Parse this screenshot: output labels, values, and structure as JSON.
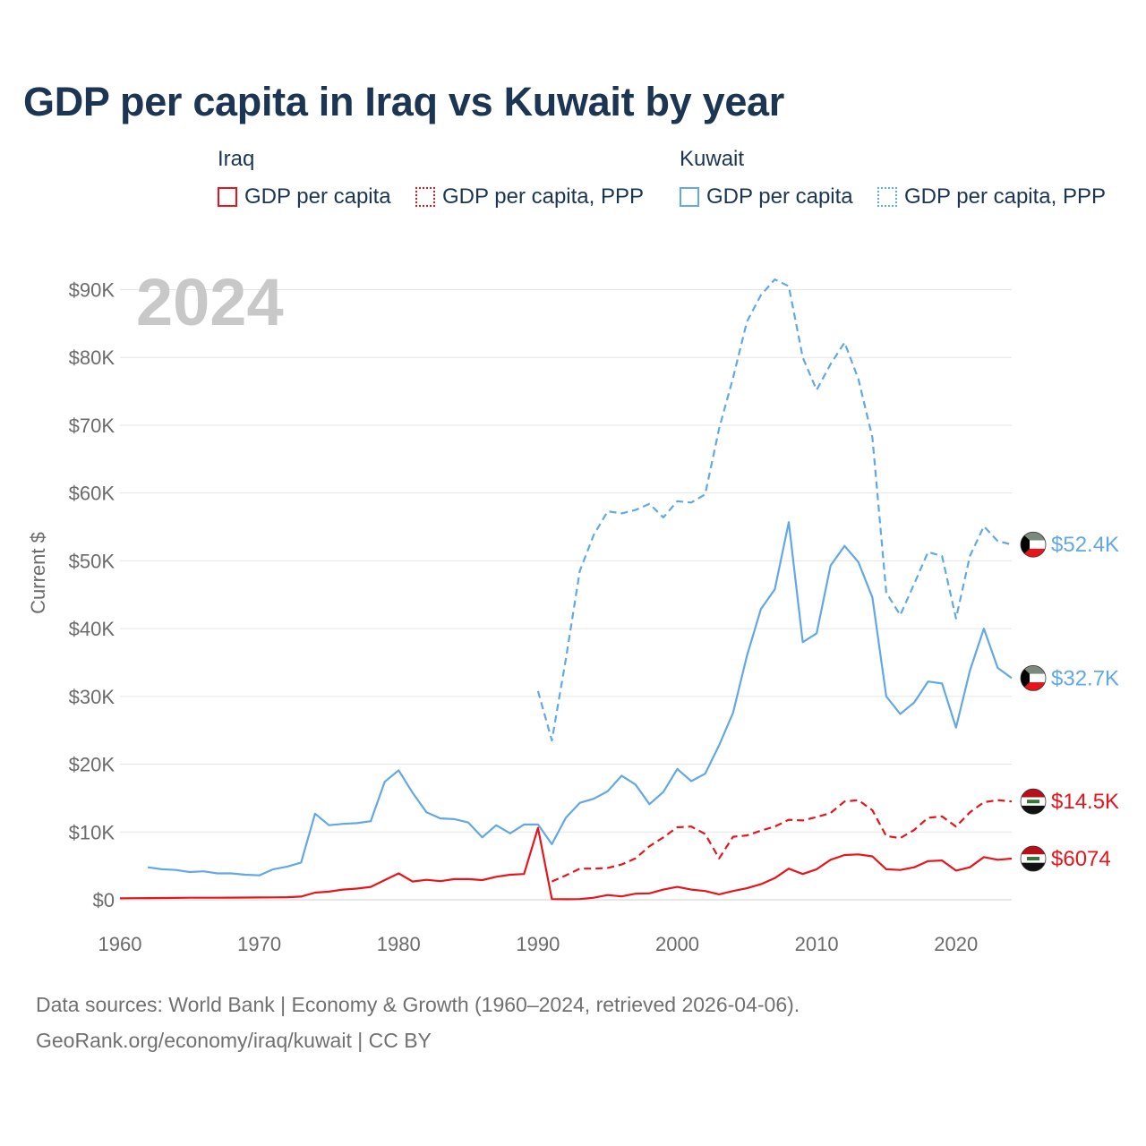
{
  "title": "GDP per capita in Iraq vs Kuwait by year",
  "legend": {
    "groups": [
      {
        "name": "Iraq",
        "items": [
          {
            "label": "GDP per capita",
            "style": "solid",
            "color": "#e8141c"
          },
          {
            "label": "GDP per capita, PPP",
            "style": "dotted",
            "color": "#e8141c"
          }
        ]
      },
      {
        "name": "Kuwait",
        "items": [
          {
            "label": "GDP per capita",
            "style": "solid",
            "color": "#62a8e5"
          },
          {
            "label": "GDP per capita, PPP",
            "style": "dotted",
            "color": "#62a8e5"
          }
        ]
      }
    ]
  },
  "year_watermark": "2024",
  "footer": {
    "line1": "Data sources: World Bank | Economy & Growth (1960–2024, retrieved 2026-04-06).",
    "line2": "GeoRank.org/economy/iraq/kuwait | CC BY"
  },
  "chart_data": {
    "type": "line",
    "title": "GDP per capita in Iraq vs Kuwait by year",
    "xlabel": "",
    "ylabel": "Current $",
    "xlim": [
      1960,
      2024
    ],
    "ylim": [
      0,
      90000
    ],
    "xticks": [
      1960,
      1970,
      1980,
      1990,
      2000,
      2010,
      2020
    ],
    "xtick_labels": [
      "1960",
      "1970",
      "1980",
      "1990",
      "2000",
      "2010",
      "2020"
    ],
    "yticks": [
      0,
      10000,
      20000,
      30000,
      40000,
      50000,
      60000,
      70000,
      80000,
      90000
    ],
    "ytick_labels": [
      "$0",
      "$10K",
      "$20K",
      "$30K",
      "$40K",
      "$50K",
      "$60K",
      "$70K",
      "$80K",
      "$90K"
    ],
    "grid": true,
    "series": [
      {
        "name": "Iraq GDP per capita",
        "country": "Iraq",
        "style": "solid",
        "color": "#e8141c",
        "end_label": "$6074",
        "x": [
          1960,
          1961,
          1962,
          1963,
          1964,
          1965,
          1966,
          1967,
          1968,
          1969,
          1970,
          1971,
          1972,
          1973,
          1974,
          1975,
          1976,
          1977,
          1978,
          1979,
          1980,
          1981,
          1982,
          1983,
          1984,
          1985,
          1986,
          1987,
          1988,
          1989,
          1990,
          1991,
          1992,
          1993,
          1994,
          1995,
          1996,
          1997,
          1998,
          1999,
          2000,
          2001,
          2002,
          2003,
          2004,
          2005,
          2006,
          2007,
          2008,
          2009,
          2010,
          2011,
          2012,
          2013,
          2014,
          2015,
          2016,
          2017,
          2018,
          2019,
          2020,
          2021,
          2022,
          2023,
          2024
        ],
        "values": [
          230,
          240,
          250,
          260,
          280,
          300,
          310,
          300,
          320,
          330,
          340,
          360,
          380,
          470,
          1050,
          1200,
          1500,
          1650,
          1900,
          2900,
          3900,
          2700,
          2950,
          2750,
          3050,
          3050,
          2900,
          3400,
          3700,
          3800,
          10600,
          100,
          80,
          100,
          300,
          700,
          500,
          900,
          950,
          1500,
          1900,
          1500,
          1300,
          800,
          1300,
          1700,
          2300,
          3200,
          4600,
          3800,
          4500,
          5900,
          6600,
          6700,
          6400,
          4500,
          4400,
          4800,
          5700,
          5800,
          4300,
          4800,
          6300,
          5900,
          6074
        ]
      },
      {
        "name": "Iraq GDP per capita, PPP",
        "country": "Iraq",
        "style": "dashed",
        "color": "#e8141c",
        "end_label": "$14.5K",
        "x": [
          1991,
          1992,
          1993,
          1994,
          1995,
          1996,
          1997,
          1998,
          1999,
          2000,
          2001,
          2002,
          2003,
          2004,
          2005,
          2006,
          2007,
          2008,
          2009,
          2010,
          2011,
          2012,
          2013,
          2014,
          2015,
          2016,
          2017,
          2018,
          2019,
          2020,
          2021,
          2022,
          2023,
          2024
        ],
        "values": [
          2700,
          3600,
          4600,
          4600,
          4700,
          5200,
          6100,
          7900,
          9200,
          10700,
          10800,
          9700,
          6100,
          9300,
          9500,
          10200,
          10800,
          11800,
          11700,
          12200,
          12800,
          14500,
          14700,
          13200,
          9400,
          9100,
          10300,
          12100,
          12300,
          10800,
          12900,
          14400,
          14700,
          14500
        ]
      },
      {
        "name": "Kuwait GDP per capita",
        "country": "Kuwait",
        "style": "solid",
        "color": "#62a8e5",
        "end_label": "$32.7K",
        "x": [
          1962,
          1963,
          1964,
          1965,
          1966,
          1967,
          1968,
          1969,
          1970,
          1971,
          1972,
          1973,
          1974,
          1975,
          1976,
          1977,
          1978,
          1979,
          1980,
          1981,
          1982,
          1983,
          1984,
          1985,
          1986,
          1987,
          1988,
          1989,
          1990,
          1991,
          1992,
          1993,
          1994,
          1995,
          1996,
          1997,
          1998,
          1999,
          2000,
          2001,
          2002,
          2003,
          2004,
          2005,
          2006,
          2007,
          2008,
          2009,
          2010,
          2011,
          2012,
          2013,
          2014,
          2015,
          2016,
          2017,
          2018,
          2019,
          2020,
          2021,
          2022,
          2023,
          2024
        ],
        "values": [
          4800,
          4500,
          4400,
          4100,
          4200,
          3900,
          3900,
          3700,
          3600,
          4500,
          4900,
          5500,
          12700,
          11000,
          11200,
          11300,
          11600,
          17400,
          19100,
          15800,
          12900,
          12000,
          11900,
          11400,
          9200,
          11000,
          9800,
          11100,
          11100,
          8200,
          12100,
          14300,
          14900,
          16000,
          18300,
          17000,
          14100,
          15900,
          19300,
          17500,
          18600,
          22800,
          27600,
          36000,
          42900,
          45800,
          55700,
          38000,
          39300,
          49300,
          52200,
          49800,
          44600,
          30000,
          27400,
          29100,
          32200,
          31900,
          25400,
          33800,
          40000,
          34200,
          32700
        ]
      },
      {
        "name": "Kuwait GDP per capita, PPP",
        "country": "Kuwait",
        "style": "dashed",
        "color": "#62a8e5",
        "end_label": "$52.4K",
        "x": [
          1990,
          1991,
          1992,
          1993,
          1994,
          1995,
          1996,
          1997,
          1998,
          1999,
          2000,
          2001,
          2002,
          2003,
          2004,
          2005,
          2006,
          2007,
          2008,
          2009,
          2010,
          2011,
          2012,
          2013,
          2014,
          2015,
          2016,
          2017,
          2018,
          2019,
          2020,
          2021,
          2022,
          2023,
          2024
        ],
        "values": [
          30800,
          23500,
          35500,
          48500,
          53800,
          57300,
          57000,
          57500,
          58400,
          56400,
          58800,
          58600,
          59800,
          69500,
          77000,
          85300,
          89200,
          91500,
          90500,
          80000,
          75200,
          79000,
          82200,
          76800,
          68200,
          45300,
          42000,
          46600,
          51300,
          50700,
          41500,
          50700,
          55100,
          52900,
          52400
        ]
      }
    ]
  }
}
